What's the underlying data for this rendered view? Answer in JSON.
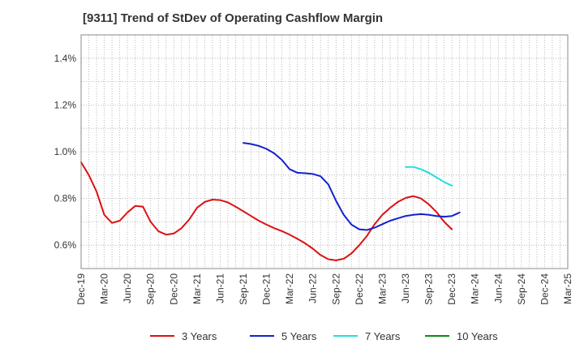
{
  "chart_data": {
    "type": "line",
    "title": "[9311]  Trend of StDev of Operating Cashflow Margin",
    "xlabel": "",
    "ylabel": "",
    "x_tick_labels": [
      "Dec-19",
      "Mar-20",
      "Jun-20",
      "Sep-20",
      "Dec-20",
      "Mar-21",
      "Jun-21",
      "Sep-21",
      "Dec-21",
      "Mar-22",
      "Jun-22",
      "Sep-22",
      "Dec-22",
      "Mar-23",
      "Jun-23",
      "Sep-23",
      "Dec-23",
      "Mar-24",
      "Jun-24",
      "Sep-24",
      "Dec-24",
      "Mar-25"
    ],
    "y_ticks": [
      0.6,
      0.8,
      1.0,
      1.2,
      1.4
    ],
    "y_tick_labels": [
      "0.6%",
      "0.8%",
      "1.0%",
      "1.2%",
      "1.4%"
    ],
    "ylim": [
      0.5,
      1.5
    ],
    "grid": true,
    "legend_position": "bottom",
    "series": [
      {
        "name": "3 Years",
        "color": "#dd1111",
        "start_month_index": 0,
        "values": [
          0.955,
          0.9,
          0.83,
          0.73,
          0.695,
          0.705,
          0.74,
          0.768,
          0.765,
          0.7,
          0.66,
          0.645,
          0.65,
          0.673,
          0.71,
          0.76,
          0.785,
          0.795,
          0.793,
          0.783,
          0.765,
          0.745,
          0.725,
          0.705,
          0.688,
          0.673,
          0.66,
          0.645,
          0.627,
          0.608,
          0.585,
          0.558,
          0.54,
          0.535,
          0.542,
          0.565,
          0.6,
          0.64,
          0.69,
          0.73,
          0.76,
          0.785,
          0.802,
          0.81,
          0.8,
          0.775,
          0.742,
          0.7,
          0.668
        ]
      },
      {
        "name": "5 Years",
        "color": "#1122cc",
        "start_month_index": 21,
        "values": [
          1.038,
          1.033,
          1.025,
          1.012,
          0.993,
          0.965,
          0.925,
          0.91,
          0.908,
          0.905,
          0.895,
          0.86,
          0.79,
          0.73,
          0.688,
          0.668,
          0.665,
          0.675,
          0.69,
          0.705,
          0.715,
          0.725,
          0.73,
          0.733,
          0.73,
          0.725,
          0.722,
          0.725,
          0.74
        ]
      },
      {
        "name": "7 Years",
        "color": "#22dddd",
        "start_month_index": 42,
        "values": [
          0.935,
          0.935,
          0.925,
          0.91,
          0.89,
          0.87,
          0.855
        ]
      },
      {
        "name": "10 Years",
        "color": "#118811",
        "start_month_index": 0,
        "values": []
      }
    ]
  }
}
